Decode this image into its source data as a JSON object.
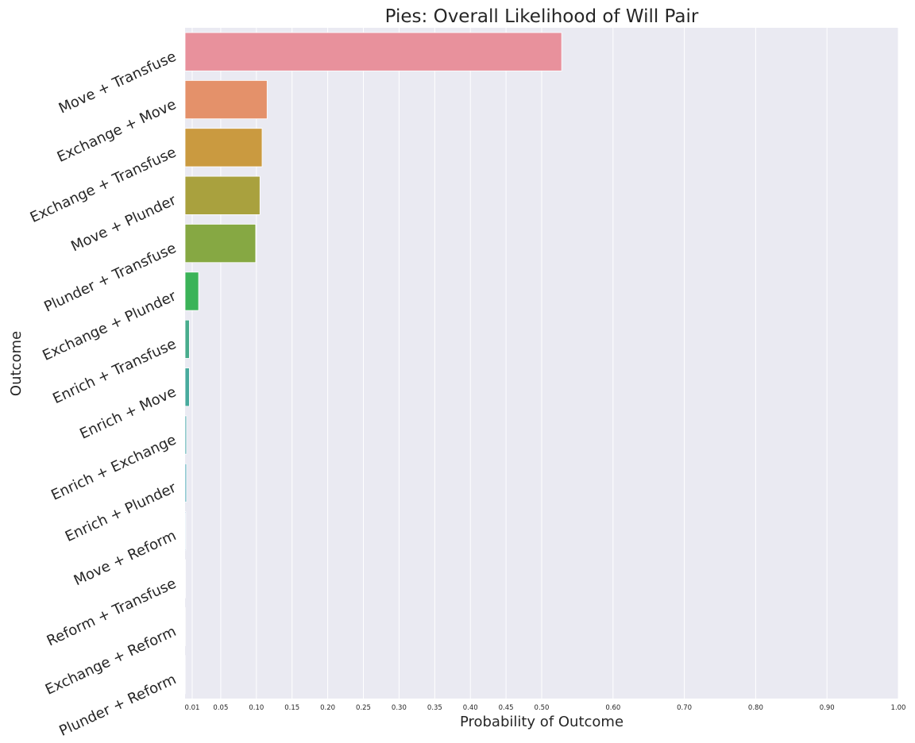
{
  "chart_data": {
    "type": "bar",
    "orientation": "horizontal",
    "title": "Pies: Overall Likelihood of Will Pair",
    "xlabel": "Probability of Outcome",
    "ylabel": "Outcome",
    "xlim": [
      0,
      1.0
    ],
    "x_ticks": [
      0.01,
      0.05,
      0.1,
      0.15,
      0.2,
      0.25,
      0.3,
      0.35,
      0.4,
      0.45,
      0.5,
      0.6,
      0.7,
      0.8,
      0.9,
      1.0
    ],
    "x_tick_labels": [
      "0.01",
      "0.05",
      "0.10",
      "0.15",
      "0.20",
      "0.25",
      "0.30",
      "0.35",
      "0.40",
      "0.45",
      "0.50",
      "0.60",
      "0.70",
      "0.80",
      "0.90",
      "1.00"
    ],
    "grid": true,
    "legend": "none",
    "categories": [
      "Move + Transfuse",
      "Exchange + Move",
      "Exchange + Transfuse",
      "Move + Plunder",
      "Plunder + Transfuse",
      "Exchange + Plunder",
      "Enrich + Transfuse",
      "Enrich + Move",
      "Enrich + Exchange",
      "Enrich + Plunder",
      "Move + Reform",
      "Reform + Transfuse",
      "Exchange + Reform",
      "Plunder + Reform"
    ],
    "values": [
      0.528,
      0.115,
      0.108,
      0.105,
      0.099,
      0.019,
      0.006,
      0.006,
      0.002,
      0.002,
      0.001,
      0.0005,
      0.0003,
      0.0002
    ],
    "colors": [
      "#e8919c",
      "#e4916a",
      "#ca9a40",
      "#a9a13e",
      "#86a843",
      "#3bb358",
      "#48ac8c",
      "#48aa9d",
      "#4aa7aa",
      "#4ba6b6",
      "#55a0c9",
      "#8f95d8",
      "#c285d4",
      "#e07fbd"
    ]
  },
  "colors": {
    "plot_background": "#eaeaf2",
    "grid": "#ffffff",
    "text": "#262626"
  }
}
